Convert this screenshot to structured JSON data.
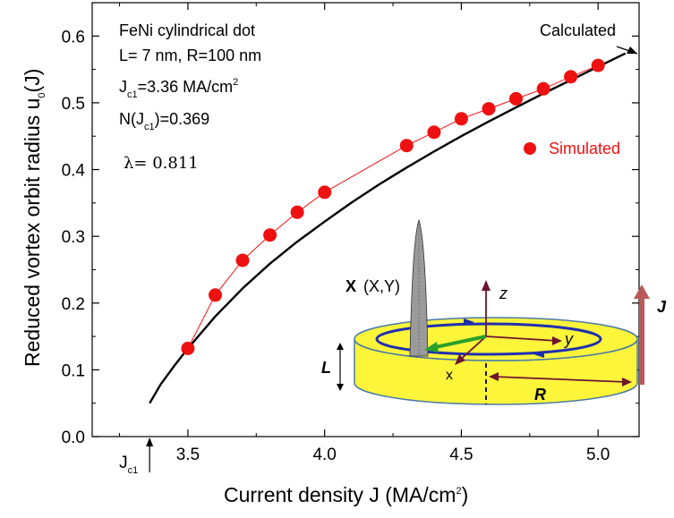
{
  "chart_data": {
    "type": "line",
    "xlabel": "Current density J (MA/cm",
    "xlabel_sup": "2",
    "xlabel_end": ")",
    "ylabel": "Reduced vortex orbit radius u",
    "ylabel_sub": "0",
    "ylabel_end": "(J)",
    "xlim": [
      3.15,
      5.15
    ],
    "ylim": [
      0.0,
      0.65
    ],
    "xticks": [
      3.5,
      4.0,
      4.5,
      5.0
    ],
    "xtick_labels": [
      "3.5",
      "4.0",
      "4.5",
      "5.0"
    ],
    "yticks": [
      0.0,
      0.1,
      0.2,
      0.3,
      0.4,
      0.5,
      0.6
    ],
    "ytick_labels": [
      "0.0",
      "0.1",
      "0.2",
      "0.3",
      "0.4",
      "0.5",
      "0.6"
    ],
    "jc1_marker": {
      "x": 3.36,
      "label": "J",
      "sub": "c1"
    },
    "annotations": {
      "line1": "FeNi cylindrical dot",
      "line2": "L= 7 nm, R=100 nm",
      "jc1_text": "J",
      "jc1_sub": "c1",
      "jc1_val": "=3.36 MA/cm",
      "jc1_sup": "2",
      "n_text": "N(J",
      "n_sub": "c1",
      "n_val": ")=0.369",
      "lambda": "λ= 0.811"
    },
    "series": [
      {
        "name": "Calculated",
        "style": "line",
        "color": "#000000",
        "x": [
          3.36,
          3.4,
          3.45,
          3.5,
          3.6,
          3.7,
          3.8,
          3.9,
          4.0,
          4.1,
          4.2,
          4.3,
          4.4,
          4.5,
          4.6,
          4.7,
          4.8,
          4.9,
          5.0,
          5.1
        ],
        "y": [
          0.05,
          0.078,
          0.106,
          0.132,
          0.18,
          0.222,
          0.259,
          0.292,
          0.322,
          0.351,
          0.378,
          0.403,
          0.427,
          0.45,
          0.472,
          0.493,
          0.514,
          0.534,
          0.554,
          0.574
        ]
      },
      {
        "name": "Simulated",
        "style": "scatter",
        "color": "#ee1111",
        "x": [
          3.5,
          3.6,
          3.7,
          3.8,
          3.9,
          4.0,
          4.3,
          4.4,
          4.5,
          4.6,
          4.7,
          4.8,
          4.9,
          5.0
        ],
        "y": [
          0.132,
          0.212,
          0.264,
          0.302,
          0.336,
          0.366,
          0.436,
          0.456,
          0.476,
          0.491,
          0.506,
          0.521,
          0.539,
          0.556
        ]
      }
    ],
    "inset": {
      "x_label": "X",
      "xy_label": "(X,Y)",
      "z_label": "z",
      "y_label": "y",
      "xaxis_label": "x",
      "l_label": "L",
      "r_label": "R",
      "j_label": "J",
      "disk_color": "#fdf53a",
      "edge_color": "#4a7aa8",
      "orbit_color": "#1f2fb0",
      "arrow_color": "#6e1530",
      "vector_color": "#2aa02a",
      "current_color": "#b85a5a"
    }
  }
}
